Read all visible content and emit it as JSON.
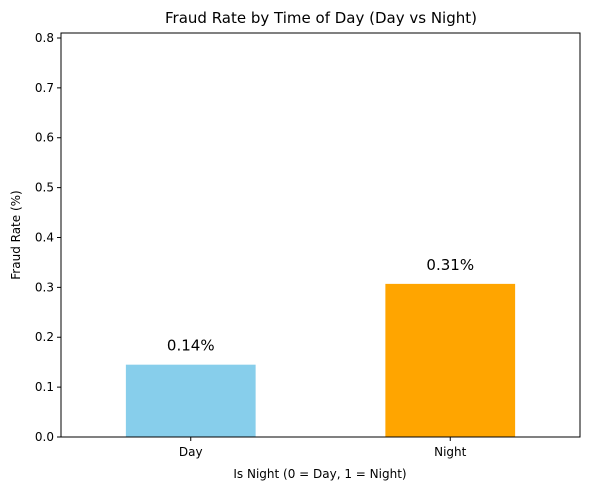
{
  "chart_data": {
    "type": "bar",
    "title": "Fraud Rate by Time of Day (Day vs Night)",
    "xlabel": "Is Night (0 = Day, 1 = Night)",
    "ylabel": "Fraud Rate (%)",
    "categories": [
      "Day",
      "Night"
    ],
    "values": [
      0.145,
      0.307
    ],
    "data_labels": [
      "0.14%",
      "0.31%"
    ],
    "colors": [
      "#87CEEB",
      "#FFA500"
    ],
    "ylim": [
      0,
      0.81
    ],
    "yticks": [
      0.0,
      0.1,
      0.2,
      0.3,
      0.4,
      0.5,
      0.6,
      0.7,
      0.8
    ],
    "ytick_labels": [
      "0.0",
      "0.1",
      "0.2",
      "0.3",
      "0.4",
      "0.5",
      "0.6",
      "0.7",
      "0.8"
    ],
    "grid": false,
    "legend": "none"
  }
}
